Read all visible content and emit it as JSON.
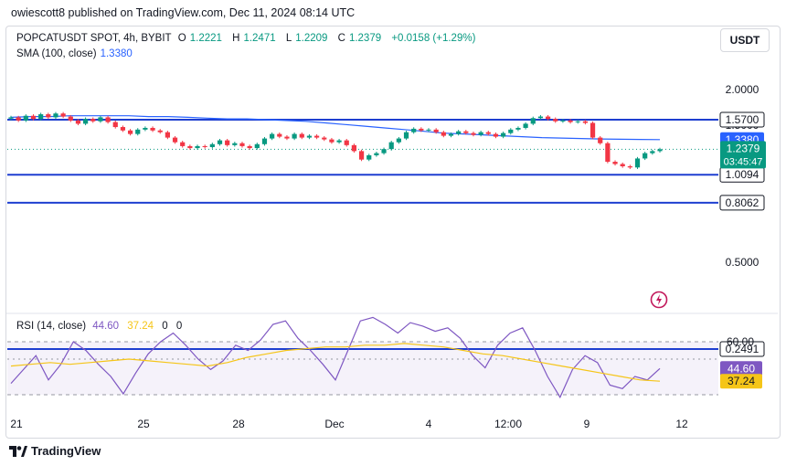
{
  "header": {
    "published": "owiescott8 published on TradingView.com, Dec 11, 2024 08:14 UTC"
  },
  "symbol": {
    "name": "POPCATUSDT SPOT, 4h, BYBIT",
    "o_label": "O",
    "o": "1.2221",
    "h_label": "H",
    "h": "1.2471",
    "l_label": "L",
    "l": "1.2209",
    "c_label": "C",
    "c": "1.2379",
    "change": "+0.0158 (+1.29%)"
  },
  "sma": {
    "label": "SMA (100, close)",
    "value": "1.3380"
  },
  "currency_button": "USDT",
  "price_axis": {
    "ticks": [
      "2.0000",
      "1.5000",
      "0.5000"
    ],
    "level_labels": [
      "1.5700",
      "1.3380",
      "1.0094",
      "0.8062",
      "0.2491"
    ],
    "last_price": "1.2379",
    "countdown": "03:45:47"
  },
  "rsi": {
    "label": "RSI (14, close)",
    "value": "44.60",
    "ma_value": "37.24",
    "z1": "0",
    "z2": "0",
    "axis_tick": "60.00"
  },
  "time_axis": {
    "labels": [
      "21",
      "25",
      "28",
      "Dec",
      "4",
      "12:00",
      "9",
      "12"
    ]
  },
  "footer": {
    "brand": "TradingView"
  },
  "colors": {
    "up": "#089981",
    "down": "#f23645",
    "sma": "#2962ff",
    "level": "#1e3fd0",
    "rsi": "#7e57c2",
    "rsi_ma": "#f5c518"
  },
  "chart_data": {
    "type": "candlestick",
    "title": "POPCATUSDT SPOT, 4h, BYBIT",
    "horizontal_levels": [
      1.57,
      1.0094,
      0.8062,
      0.2491
    ],
    "close_prices": [
      1.6,
      1.56,
      1.62,
      1.58,
      1.64,
      1.6,
      1.65,
      1.61,
      1.56,
      1.52,
      1.58,
      1.55,
      1.6,
      1.54,
      1.48,
      1.44,
      1.4,
      1.45,
      1.47,
      1.44,
      1.42,
      1.36,
      1.31,
      1.27,
      1.25,
      1.27,
      1.26,
      1.29,
      1.33,
      1.28,
      1.3,
      1.27,
      1.25,
      1.29,
      1.35,
      1.4,
      1.37,
      1.35,
      1.4,
      1.36,
      1.38,
      1.36,
      1.34,
      1.31,
      1.33,
      1.28,
      1.22,
      1.14,
      1.18,
      1.2,
      1.24,
      1.31,
      1.35,
      1.42,
      1.46,
      1.44,
      1.45,
      1.42,
      1.38,
      1.4,
      1.43,
      1.41,
      1.39,
      1.42,
      1.4,
      1.37,
      1.41,
      1.45,
      1.47,
      1.52,
      1.59,
      1.61,
      1.58,
      1.55,
      1.56,
      1.54,
      1.55,
      1.53,
      1.36,
      1.3,
      1.12,
      1.1,
      1.08,
      1.07,
      1.15,
      1.2,
      1.22,
      1.2379
    ],
    "sma_100": [
      1.6,
      1.61,
      1.61,
      1.62,
      1.62,
      1.62,
      1.62,
      1.61,
      1.61,
      1.6,
      1.59,
      1.58,
      1.58,
      1.57,
      1.56,
      1.55,
      1.53,
      1.51,
      1.49,
      1.47,
      1.45,
      1.43,
      1.41,
      1.4,
      1.39,
      1.38,
      1.37,
      1.36,
      1.355,
      1.35,
      1.345,
      1.342,
      1.34,
      1.338
    ],
    "rsi": [
      36,
      44,
      52,
      38,
      47,
      60,
      55,
      47,
      40,
      30,
      42,
      53,
      60,
      65,
      58,
      50,
      44,
      49,
      58,
      55,
      61,
      70,
      72,
      62,
      55,
      47,
      38,
      55,
      72,
      74,
      70,
      65,
      71,
      69,
      66,
      68,
      62,
      52,
      45,
      58,
      65,
      68,
      55,
      40,
      28,
      44,
      52,
      48,
      35,
      33,
      40,
      38,
      44.6
    ],
    "rsi_ma": [
      46,
      47,
      48,
      47,
      48,
      49,
      50,
      49,
      48,
      47,
      46,
      48,
      51,
      53,
      55,
      56,
      57,
      57,
      58,
      58,
      59,
      58,
      57,
      55,
      53,
      52,
      50,
      48,
      46,
      44,
      42,
      40,
      38,
      37.24
    ],
    "ylabel": "",
    "xlabel": ""
  }
}
